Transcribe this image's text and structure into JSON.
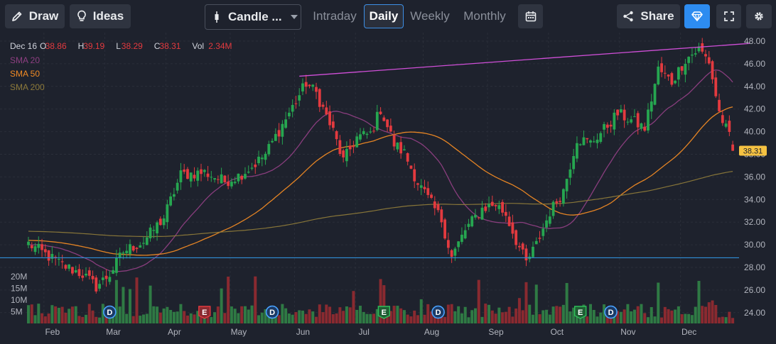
{
  "toolbar": {
    "draw_label": "Draw",
    "ideas_label": "Ideas",
    "chart_type_label": "Candle ...",
    "timeframes": [
      "Intraday",
      "Daily",
      "Weekly",
      "Monthly"
    ],
    "active_timeframe": "Daily",
    "share_label": "Share"
  },
  "legend": {
    "date": "Dec 16",
    "ohlc": [
      {
        "k": "O",
        "v": "38.86"
      },
      {
        "k": "H",
        "v": "39.19"
      },
      {
        "k": "L",
        "v": "38.29"
      },
      {
        "k": "C",
        "v": "38.31"
      },
      {
        "k": "Vol",
        "v": "2.34M"
      }
    ],
    "sma": [
      {
        "label": "SMA 20",
        "color": "#8e3f82"
      },
      {
        "label": "SMA 50",
        "color": "#f08a24"
      },
      {
        "label": "SMA 200",
        "color": "#8d7a3a"
      }
    ]
  },
  "colors": {
    "up": "#26a650",
    "down": "#e33a3f",
    "vol_up": "#2f7a44",
    "vol_down": "#8a2a30",
    "trendline": "#d04fd8",
    "support": "#2f8fd8",
    "last_price_bg": "#f5c242"
  },
  "chart_data": {
    "type": "candlestick",
    "symbol_last_close": "38.31",
    "y_axis": {
      "ticks": [
        "48.00",
        "46.00",
        "44.00",
        "42.00",
        "40.00",
        "38.00",
        "36.00",
        "34.00",
        "32.00",
        "30.00",
        "28.00",
        "26.00",
        "24.00"
      ],
      "range": [
        23.6,
        48.4
      ]
    },
    "volume_axis": {
      "ticks": [
        "20M",
        "15M",
        "10M",
        "5M"
      ]
    },
    "x_axis": {
      "ticks": [
        "Feb",
        "Mar",
        "Apr",
        "May",
        "Jun",
        "Jul",
        "Aug",
        "Sep",
        "Oct",
        "Nov",
        "Dec"
      ]
    },
    "price_anchors": [
      {
        "t": 0,
        "p": 30.1
      },
      {
        "t": 10,
        "p": 28.2
      },
      {
        "t": 16,
        "p": 27.4
      },
      {
        "t": 20,
        "p": 26.3
      },
      {
        "t": 24,
        "p": 27.4
      },
      {
        "t": 28,
        "p": 29.4
      },
      {
        "t": 34,
        "p": 30.3
      },
      {
        "t": 40,
        "p": 32.4
      },
      {
        "t": 45,
        "p": 36.2
      },
      {
        "t": 52,
        "p": 36.4
      },
      {
        "t": 58,
        "p": 35.6
      },
      {
        "t": 62,
        "p": 36.1
      },
      {
        "t": 66,
        "p": 36.9
      },
      {
        "t": 70,
        "p": 38.0
      },
      {
        "t": 74,
        "p": 40.1
      },
      {
        "t": 79,
        "p": 42.7
      },
      {
        "t": 82,
        "p": 44.3
      },
      {
        "t": 85,
        "p": 43.4
      },
      {
        "t": 90,
        "p": 40.0
      },
      {
        "t": 93,
        "p": 37.4
      },
      {
        "t": 97,
        "p": 39.5
      },
      {
        "t": 101,
        "p": 39.8
      },
      {
        "t": 104,
        "p": 42.0
      },
      {
        "t": 108,
        "p": 38.9
      },
      {
        "t": 111,
        "p": 38.1
      },
      {
        "t": 115,
        "p": 35.5
      },
      {
        "t": 119,
        "p": 33.6
      },
      {
        "t": 122,
        "p": 32.2
      },
      {
        "t": 125,
        "p": 28.9
      },
      {
        "t": 129,
        "p": 31.3
      },
      {
        "t": 134,
        "p": 33.2
      },
      {
        "t": 138,
        "p": 33.6
      },
      {
        "t": 141,
        "p": 32.7
      },
      {
        "t": 144,
        "p": 30.4
      },
      {
        "t": 147,
        "p": 28.4
      },
      {
        "t": 150,
        "p": 30.0
      },
      {
        "t": 154,
        "p": 32.9
      },
      {
        "t": 158,
        "p": 34.8
      },
      {
        "t": 162,
        "p": 39.4
      },
      {
        "t": 166,
        "p": 39.0
      },
      {
        "t": 170,
        "p": 40.2
      },
      {
        "t": 174,
        "p": 41.6
      },
      {
        "t": 178,
        "p": 41.0
      },
      {
        "t": 182,
        "p": 40.3
      },
      {
        "t": 186,
        "p": 45.5
      },
      {
        "t": 190,
        "p": 44.4
      },
      {
        "t": 194,
        "p": 46.4
      },
      {
        "t": 198,
        "p": 47.3
      },
      {
        "t": 201,
        "p": 46.2
      },
      {
        "t": 204,
        "p": 41.7
      },
      {
        "t": 207,
        "p": 39.5
      },
      {
        "t": 208,
        "p": 38.31
      }
    ],
    "month_start_bars": [
      {
        "label": "Feb",
        "t": 5
      },
      {
        "label": "Mar",
        "t": 23
      },
      {
        "label": "Apr",
        "t": 41
      },
      {
        "label": "May",
        "t": 60
      },
      {
        "label": "Jun",
        "t": 79
      },
      {
        "label": "Jul",
        "t": 97
      },
      {
        "label": "Aug",
        "t": 117
      },
      {
        "label": "Sep",
        "t": 136
      },
      {
        "label": "Oct",
        "t": 154
      },
      {
        "label": "Nov",
        "t": 175
      },
      {
        "label": "Dec",
        "t": 193
      }
    ],
    "events": [
      {
        "label": "D",
        "t": 24,
        "kind": "dividend"
      },
      {
        "label": "E",
        "t": 52,
        "kind": "earnings"
      },
      {
        "label": "D",
        "t": 72,
        "kind": "dividend"
      },
      {
        "label": "E",
        "t": 105,
        "kind": "earnings"
      },
      {
        "label": "D",
        "t": 121,
        "kind": "dividend"
      },
      {
        "label": "E",
        "t": 163,
        "kind": "earnings"
      },
      {
        "label": "D",
        "t": 172,
        "kind": "dividend"
      }
    ],
    "trendline": {
      "from": {
        "t": 80,
        "p": 44.9
      },
      "to": {
        "t": 208,
        "p": 47.8
      }
    },
    "support_line": {
      "p": 28.85
    },
    "sma_periods": [
      20,
      50,
      200
    ]
  }
}
